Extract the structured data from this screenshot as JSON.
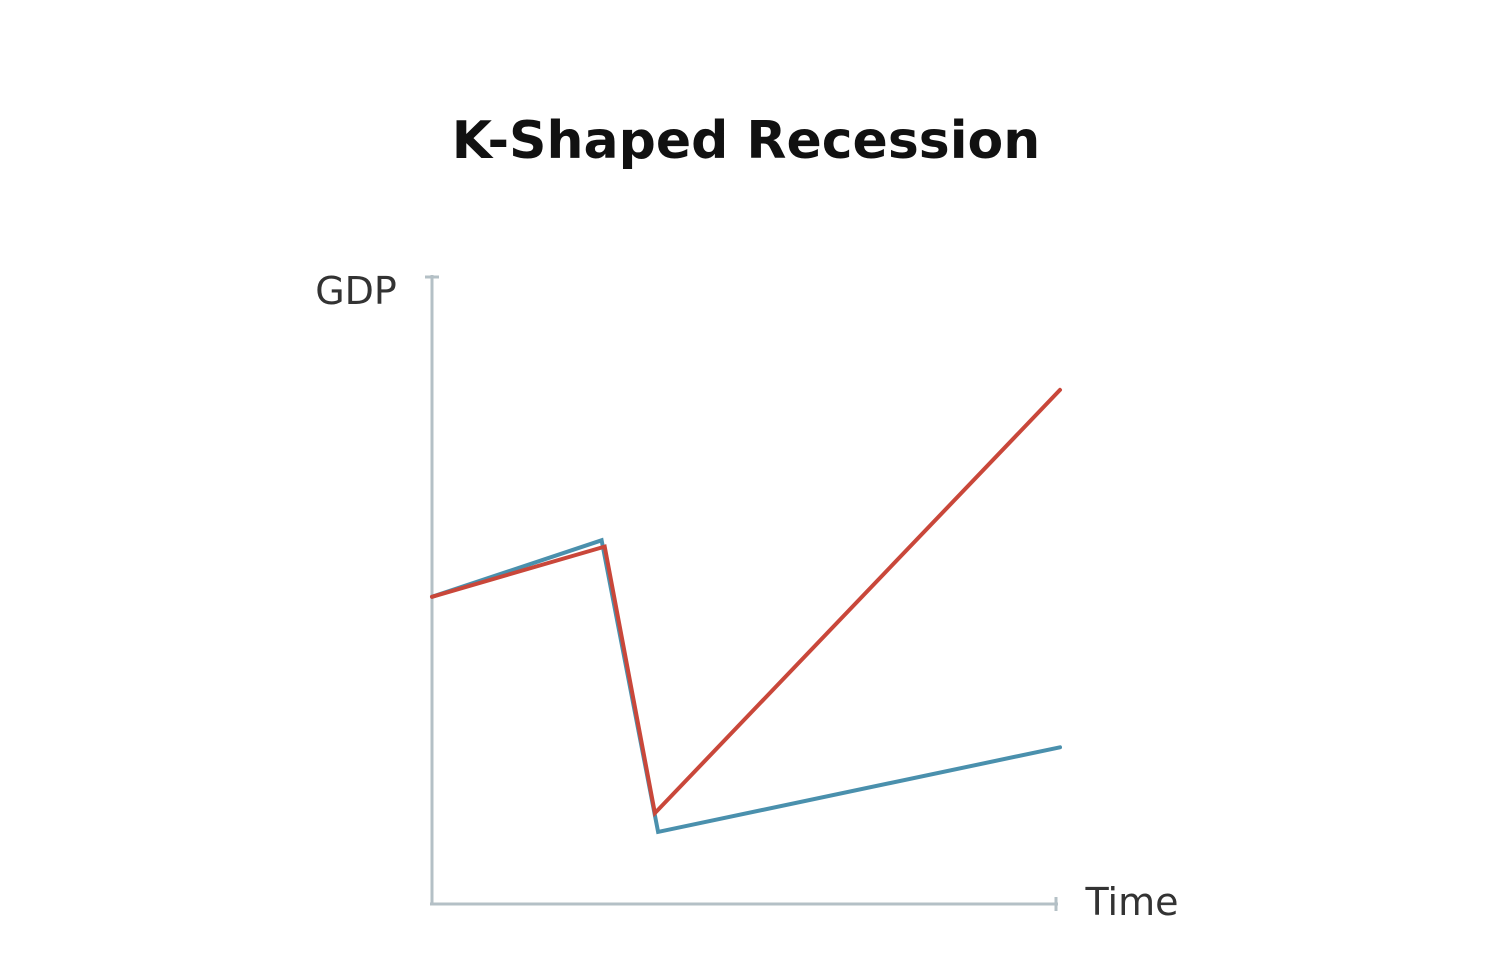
{
  "chart_data": {
    "type": "line",
    "title": "K-Shaped Recession",
    "xlabel": "Time",
    "ylabel": "GDP",
    "xlim": [
      0,
      10
    ],
    "ylim": [
      0,
      10
    ],
    "grid": false,
    "legend": "none",
    "series": [
      {
        "color": "#4a90ad",
        "x": [
          0,
          2.7,
          3.6,
          10
        ],
        "y": [
          4.9,
          5.8,
          1.15,
          2.5
        ]
      },
      {
        "color": "#c9473a",
        "x": [
          0,
          2.75,
          3.55,
          10
        ],
        "y": [
          4.9,
          5.7,
          1.45,
          8.2
        ]
      }
    ]
  }
}
